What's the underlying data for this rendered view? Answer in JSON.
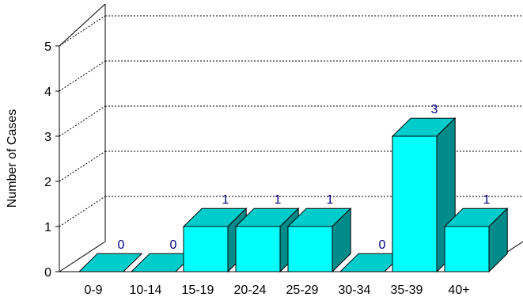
{
  "chart_data": {
    "type": "bar",
    "title": "",
    "xlabel": "",
    "ylabel": "Number of Cases",
    "ylim": [
      0,
      5
    ],
    "yticks": [
      0,
      1,
      2,
      3,
      4,
      5
    ],
    "categories": [
      "0-9",
      "10-14",
      "15-19",
      "20-24",
      "25-29",
      "30-34",
      "35-39",
      "40+"
    ],
    "values": [
      0,
      0,
      1,
      1,
      1,
      0,
      3,
      1
    ],
    "data_labels": [
      "0",
      "0",
      "1",
      "1",
      "1",
      "0",
      "3",
      "1"
    ],
    "grid": true,
    "style": "3d",
    "colors": {
      "bar_front": "#00FFFF",
      "bar_top": "#00CCCC",
      "bar_side": "#008B8B",
      "data_label": "#000080",
      "axis": "#000000"
    }
  }
}
